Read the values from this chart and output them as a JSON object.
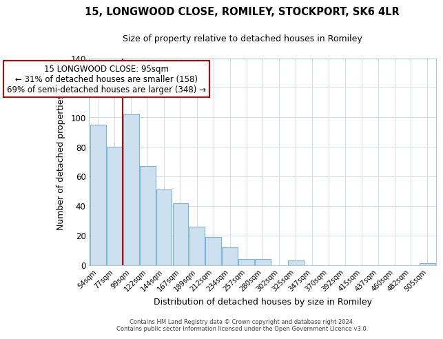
{
  "title": "15, LONGWOOD CLOSE, ROMILEY, STOCKPORT, SK6 4LR",
  "subtitle": "Size of property relative to detached houses in Romiley",
  "xlabel": "Distribution of detached houses by size in Romiley",
  "ylabel": "Number of detached properties",
  "categories": [
    "54sqm",
    "77sqm",
    "99sqm",
    "122sqm",
    "144sqm",
    "167sqm",
    "189sqm",
    "212sqm",
    "234sqm",
    "257sqm",
    "280sqm",
    "302sqm",
    "325sqm",
    "347sqm",
    "370sqm",
    "392sqm",
    "415sqm",
    "437sqm",
    "460sqm",
    "482sqm",
    "505sqm"
  ],
  "values": [
    95,
    80,
    102,
    67,
    51,
    42,
    26,
    19,
    12,
    4,
    4,
    0,
    3,
    0,
    0,
    0,
    0,
    0,
    0,
    0,
    1
  ],
  "bar_color": "#cce0f0",
  "bar_edge_color": "#7ab4d8",
  "vline_color": "#cc0000",
  "annotation_title": "15 LONGWOOD CLOSE: 95sqm",
  "annotation_line1": "← 31% of detached houses are smaller (158)",
  "annotation_line2": "69% of semi-detached houses are larger (348) →",
  "annotation_box_edge": "#cc0000",
  "ylim": [
    0,
    140
  ],
  "yticks": [
    0,
    20,
    40,
    60,
    80,
    100,
    120,
    140
  ],
  "footer_line1": "Contains HM Land Registry data © Crown copyright and database right 2024.",
  "footer_line2": "Contains public sector information licensed under the Open Government Licence v3.0.",
  "background_color": "#ffffff",
  "grid_color": "#d0dce8"
}
